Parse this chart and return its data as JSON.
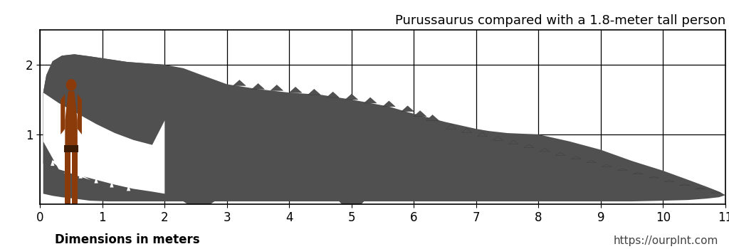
{
  "title": "Purussaurus compared with a 1.8-meter tall person",
  "xlabel_left": "Dimensions in meters",
  "url_right": "https://ourplnt.com",
  "xlim": [
    0,
    11
  ],
  "ylim": [
    0,
    2.5
  ],
  "xticks": [
    0,
    1,
    2,
    3,
    4,
    5,
    6,
    7,
    8,
    9,
    10,
    11
  ],
  "yticks": [
    1,
    2
  ],
  "grid_color": "#000000",
  "background_color": "#ffffff",
  "croc_color": "#505050",
  "human_color": "#8B3A0A",
  "title_fontsize": 13,
  "label_fontsize": 12,
  "tick_fontsize": 12
}
